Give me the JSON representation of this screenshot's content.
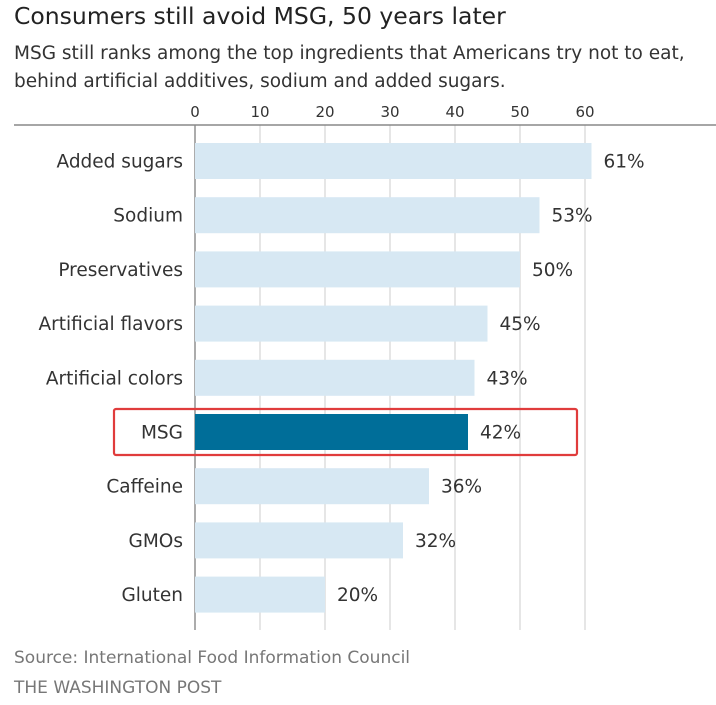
{
  "chart_data": {
    "type": "bar",
    "orientation": "horizontal",
    "title": "Consumers still avoid MSG, 50 years later",
    "subtitle": "MSG still ranks among the top ingredients that Americans try not to eat, behind artificial additives, sodium and added sugars.",
    "categories": [
      "Added sugars",
      "Sodium",
      "Preservatives",
      "Artificial flavors",
      "Artificial colors",
      "MSG",
      "Caffeine",
      "GMOs",
      "Gluten"
    ],
    "values": [
      61,
      53,
      50,
      45,
      43,
      42,
      36,
      32,
      20
    ],
    "value_labels": [
      "61%",
      "53%",
      "50%",
      "45%",
      "43%",
      "42%",
      "36%",
      "32%",
      "20%"
    ],
    "highlight": "MSG",
    "xlim": [
      0,
      60
    ],
    "xticks": [
      0,
      10,
      20,
      30,
      40,
      50,
      60
    ],
    "xtick_labels": [
      "0",
      "10",
      "20",
      "30",
      "40",
      "50",
      "60"
    ],
    "axis_position": "top",
    "grid": true,
    "xlabel": "",
    "ylabel": ""
  },
  "source": "Source: International Food Information Council",
  "credit": "THE WASHINGTON POST",
  "colors": {
    "bar": "#d7e8f3",
    "highlight_bar": "#006e99",
    "highlight_box": "#e03c3c",
    "grid": "#cccccc",
    "axis": "#888888"
  }
}
